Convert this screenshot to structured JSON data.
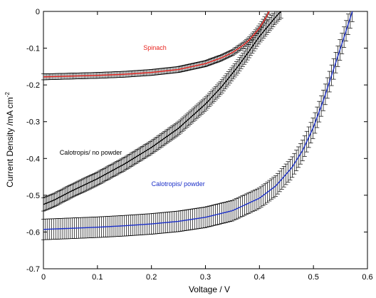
{
  "chart_data": {
    "type": "line",
    "xlabel": "Voltage / V",
    "ylabel_text": "Current Density /mA cm",
    "ylabel_sup": "-2",
    "xlim": [
      0,
      0.6
    ],
    "ylim": [
      -0.7,
      0
    ],
    "xticks": [
      "0",
      "0.1",
      "0.2",
      "0.3",
      "0.4",
      "0.5",
      "0.6"
    ],
    "yticks": [
      "0",
      "-0.1",
      "-0.2",
      "-0.3",
      "-0.4",
      "-0.5",
      "-0.6",
      "-0.7"
    ],
    "grid": false,
    "series": [
      {
        "name": "Spinach",
        "color": "#e8231e",
        "label_color": "#e8231e",
        "error": 0.008,
        "x": [
          0,
          0.05,
          0.1,
          0.15,
          0.2,
          0.25,
          0.3,
          0.33,
          0.35,
          0.37,
          0.38,
          0.39,
          0.4,
          0.41,
          0.418
        ],
        "y": [
          -0.178,
          -0.176,
          -0.174,
          -0.171,
          -0.166,
          -0.158,
          -0.142,
          -0.126,
          -0.112,
          -0.092,
          -0.079,
          -0.063,
          -0.045,
          -0.022,
          0.0
        ]
      },
      {
        "name": "Calotropis/ no powder",
        "color": "#000000",
        "label_color": "#000000",
        "error": 0.018,
        "x": [
          0,
          0.02,
          0.05,
          0.1,
          0.15,
          0.2,
          0.25,
          0.3,
          0.33,
          0.36,
          0.38,
          0.4,
          0.42,
          0.43,
          0.44
        ],
        "y": [
          -0.525,
          -0.513,
          -0.49,
          -0.455,
          -0.415,
          -0.37,
          -0.318,
          -0.252,
          -0.205,
          -0.15,
          -0.11,
          -0.068,
          -0.033,
          -0.015,
          0.0
        ]
      },
      {
        "name": "Calotropis/ powder",
        "color": "#1a2ec8",
        "label_color": "#1a2ec8",
        "error": 0.028,
        "x": [
          0,
          0.05,
          0.1,
          0.15,
          0.2,
          0.25,
          0.3,
          0.35,
          0.4,
          0.43,
          0.46,
          0.48,
          0.5,
          0.52,
          0.54,
          0.56,
          0.572
        ],
        "y": [
          -0.593,
          -0.59,
          -0.587,
          -0.583,
          -0.578,
          -0.571,
          -0.56,
          -0.542,
          -0.508,
          -0.475,
          -0.425,
          -0.378,
          -0.315,
          -0.235,
          -0.145,
          -0.055,
          0.0
        ]
      }
    ],
    "annotations": [
      {
        "text": "Spinach",
        "x": 0.185,
        "y": -0.105,
        "color": "#e8231e",
        "size": 9
      },
      {
        "text": "Calotropis/ no powder",
        "x": 0.03,
        "y": -0.39,
        "color": "#000000",
        "size": 9
      },
      {
        "text": "Calotropis/ powder",
        "x": 0.2,
        "y": -0.475,
        "color": "#1a2ec8",
        "size": 9
      }
    ]
  }
}
